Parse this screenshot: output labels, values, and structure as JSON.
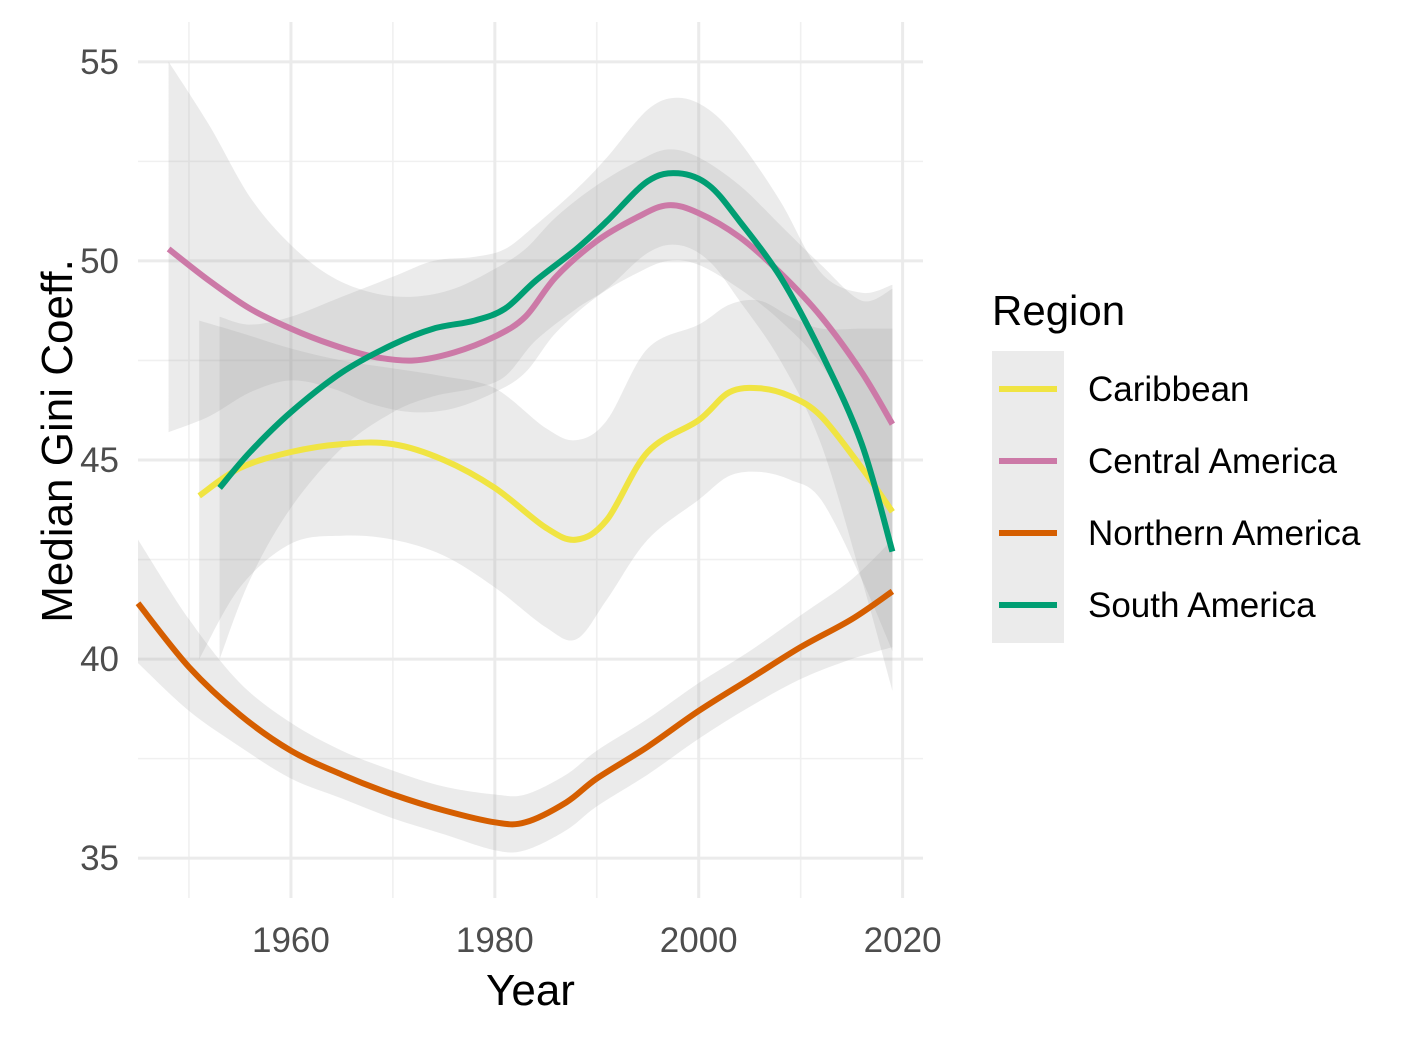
{
  "chart_data": {
    "type": "line",
    "xlabel": "Year",
    "ylabel": "Median Gini Coeff.",
    "xlim": [
      1945,
      2022
    ],
    "ylim": [
      34,
      56
    ],
    "x_ticks": [
      1960,
      1980,
      2000,
      2020
    ],
    "y_ticks": [
      35,
      40,
      45,
      50,
      55
    ],
    "grid": true,
    "confidence_bands": true,
    "legend": {
      "title": "Region",
      "placement": "right"
    },
    "series": [
      {
        "name": "Caribbean",
        "color": "#F0E442",
        "points": [
          [
            1951,
            44.1
          ],
          [
            1955,
            44.8
          ],
          [
            1960,
            45.2
          ],
          [
            1965,
            45.4
          ],
          [
            1970,
            45.4
          ],
          [
            1975,
            45.0
          ],
          [
            1980,
            44.3
          ],
          [
            1985,
            43.3
          ],
          [
            1988,
            43.0
          ],
          [
            1991,
            43.5
          ],
          [
            1995,
            45.2
          ],
          [
            2000,
            46.0
          ],
          [
            2003,
            46.7
          ],
          [
            2006,
            46.8
          ],
          [
            2009,
            46.6
          ],
          [
            2012,
            46.1
          ],
          [
            2016,
            44.8
          ],
          [
            2019,
            43.7
          ]
        ],
        "band_upper": [
          [
            1951,
            48.5
          ],
          [
            1955,
            48.2
          ],
          [
            1960,
            47.8
          ],
          [
            1965,
            47.5
          ],
          [
            1970,
            47.3
          ],
          [
            1975,
            47.1
          ],
          [
            1980,
            46.8
          ],
          [
            1985,
            45.8
          ],
          [
            1988,
            45.5
          ],
          [
            1991,
            46.0
          ],
          [
            1995,
            47.8
          ],
          [
            2000,
            48.4
          ],
          [
            2003,
            48.9
          ],
          [
            2006,
            49.0
          ],
          [
            2009,
            48.6
          ],
          [
            2012,
            48.3
          ],
          [
            2016,
            48.3
          ],
          [
            2019,
            48.3
          ]
        ],
        "band_lower": [
          [
            1951,
            40.0
          ],
          [
            1955,
            41.8
          ],
          [
            1960,
            42.9
          ],
          [
            1965,
            43.1
          ],
          [
            1970,
            43.0
          ],
          [
            1975,
            42.6
          ],
          [
            1980,
            41.8
          ],
          [
            1985,
            40.8
          ],
          [
            1988,
            40.5
          ],
          [
            1991,
            41.5
          ],
          [
            1995,
            43.0
          ],
          [
            2000,
            44.0
          ],
          [
            2003,
            44.6
          ],
          [
            2006,
            44.7
          ],
          [
            2009,
            44.5
          ],
          [
            2012,
            44.0
          ],
          [
            2016,
            42.0
          ],
          [
            2019,
            40.2
          ]
        ]
      },
      {
        "name": "Central America",
        "color": "#CC79A7",
        "points": [
          [
            1948,
            50.3
          ],
          [
            1952,
            49.5
          ],
          [
            1956,
            48.8
          ],
          [
            1960,
            48.3
          ],
          [
            1964,
            47.9
          ],
          [
            1968,
            47.6
          ],
          [
            1972,
            47.5
          ],
          [
            1976,
            47.7
          ],
          [
            1980,
            48.1
          ],
          [
            1983,
            48.6
          ],
          [
            1986,
            49.6
          ],
          [
            1990,
            50.5
          ],
          [
            1994,
            51.1
          ],
          [
            1997,
            51.4
          ],
          [
            2000,
            51.2
          ],
          [
            2004,
            50.6
          ],
          [
            2008,
            49.7
          ],
          [
            2012,
            48.6
          ],
          [
            2016,
            47.2
          ],
          [
            2019,
            45.9
          ]
        ],
        "band_upper": [
          [
            1948,
            55.0
          ],
          [
            1952,
            53.4
          ],
          [
            1956,
            51.6
          ],
          [
            1960,
            50.4
          ],
          [
            1964,
            49.6
          ],
          [
            1968,
            49.2
          ],
          [
            1972,
            49.1
          ],
          [
            1976,
            49.3
          ],
          [
            1980,
            49.8
          ],
          [
            1983,
            50.3
          ],
          [
            1986,
            51.1
          ],
          [
            1990,
            51.9
          ],
          [
            1994,
            52.5
          ],
          [
            1997,
            52.8
          ],
          [
            2000,
            52.6
          ],
          [
            2004,
            51.9
          ],
          [
            2008,
            50.9
          ],
          [
            2012,
            49.9
          ],
          [
            2016,
            49.0
          ],
          [
            2019,
            49.3
          ]
        ],
        "band_lower": [
          [
            1948,
            45.7
          ],
          [
            1952,
            46.1
          ],
          [
            1956,
            46.7
          ],
          [
            1960,
            47.0
          ],
          [
            1964,
            46.8
          ],
          [
            1968,
            46.4
          ],
          [
            1972,
            46.2
          ],
          [
            1976,
            46.3
          ],
          [
            1980,
            46.7
          ],
          [
            1983,
            47.2
          ],
          [
            1986,
            48.2
          ],
          [
            1990,
            49.1
          ],
          [
            1994,
            49.7
          ],
          [
            1997,
            50.0
          ],
          [
            2000,
            49.9
          ],
          [
            2004,
            49.3
          ],
          [
            2008,
            48.5
          ],
          [
            2012,
            47.4
          ],
          [
            2016,
            45.6
          ],
          [
            2019,
            42.5
          ]
        ]
      },
      {
        "name": "Northern America",
        "color": "#D55E00",
        "points": [
          [
            1945,
            41.4
          ],
          [
            1950,
            39.8
          ],
          [
            1955,
            38.6
          ],
          [
            1960,
            37.7
          ],
          [
            1965,
            37.1
          ],
          [
            1970,
            36.6
          ],
          [
            1975,
            36.2
          ],
          [
            1980,
            35.9
          ],
          [
            1983,
            35.9
          ],
          [
            1987,
            36.4
          ],
          [
            1990,
            37.0
          ],
          [
            1995,
            37.8
          ],
          [
            2000,
            38.7
          ],
          [
            2005,
            39.5
          ],
          [
            2010,
            40.3
          ],
          [
            2015,
            41.0
          ],
          [
            2019,
            41.7
          ]
        ],
        "band_upper": [
          [
            1945,
            43.0
          ],
          [
            1950,
            41.0
          ],
          [
            1955,
            39.4
          ],
          [
            1960,
            38.4
          ],
          [
            1965,
            37.7
          ],
          [
            1970,
            37.2
          ],
          [
            1975,
            36.8
          ],
          [
            1980,
            36.6
          ],
          [
            1983,
            36.6
          ],
          [
            1987,
            37.1
          ],
          [
            1990,
            37.7
          ],
          [
            1995,
            38.5
          ],
          [
            2000,
            39.4
          ],
          [
            2005,
            40.2
          ],
          [
            2010,
            41.1
          ],
          [
            2015,
            42.0
          ],
          [
            2019,
            43.0
          ]
        ],
        "band_lower": [
          [
            1945,
            39.9
          ],
          [
            1950,
            38.7
          ],
          [
            1955,
            37.8
          ],
          [
            1960,
            37.0
          ],
          [
            1965,
            36.5
          ],
          [
            1970,
            36.0
          ],
          [
            1975,
            35.6
          ],
          [
            1980,
            35.2
          ],
          [
            1983,
            35.2
          ],
          [
            1987,
            35.7
          ],
          [
            1990,
            36.3
          ],
          [
            1995,
            37.1
          ],
          [
            2000,
            38.0
          ],
          [
            2005,
            38.8
          ],
          [
            2010,
            39.5
          ],
          [
            2015,
            40.0
          ],
          [
            2019,
            40.3
          ]
        ]
      },
      {
        "name": "South America",
        "color": "#009E73",
        "points": [
          [
            1953,
            44.3
          ],
          [
            1956,
            45.2
          ],
          [
            1960,
            46.2
          ],
          [
            1965,
            47.2
          ],
          [
            1970,
            47.9
          ],
          [
            1974,
            48.3
          ],
          [
            1978,
            48.5
          ],
          [
            1981,
            48.8
          ],
          [
            1984,
            49.5
          ],
          [
            1988,
            50.3
          ],
          [
            1991,
            51.0
          ],
          [
            1995,
            52.0
          ],
          [
            1998,
            52.2
          ],
          [
            2001,
            51.9
          ],
          [
            2004,
            51.0
          ],
          [
            2008,
            49.6
          ],
          [
            2012,
            47.7
          ],
          [
            2016,
            45.4
          ],
          [
            2019,
            42.7
          ]
        ],
        "band_upper": [
          [
            1953,
            48.6
          ],
          [
            1956,
            48.4
          ],
          [
            1960,
            48.6
          ],
          [
            1965,
            49.1
          ],
          [
            1970,
            49.6
          ],
          [
            1974,
            50.0
          ],
          [
            1978,
            50.1
          ],
          [
            1981,
            50.3
          ],
          [
            1984,
            50.9
          ],
          [
            1988,
            51.8
          ],
          [
            1991,
            52.6
          ],
          [
            1995,
            53.8
          ],
          [
            1998,
            54.1
          ],
          [
            2001,
            53.8
          ],
          [
            2004,
            53.0
          ],
          [
            2008,
            51.5
          ],
          [
            2012,
            49.7
          ],
          [
            2016,
            49.2
          ],
          [
            2019,
            49.4
          ]
        ],
        "band_lower": [
          [
            1953,
            40.0
          ],
          [
            1956,
            42.0
          ],
          [
            1960,
            43.8
          ],
          [
            1965,
            45.3
          ],
          [
            1970,
            46.2
          ],
          [
            1974,
            46.6
          ],
          [
            1978,
            46.8
          ],
          [
            1981,
            47.1
          ],
          [
            1984,
            48.0
          ],
          [
            1988,
            48.8
          ],
          [
            1991,
            49.3
          ],
          [
            1995,
            50.2
          ],
          [
            1998,
            50.4
          ],
          [
            2001,
            50.0
          ],
          [
            2004,
            49.0
          ],
          [
            2008,
            47.5
          ],
          [
            2012,
            45.4
          ],
          [
            2016,
            42.0
          ],
          [
            2019,
            39.2
          ]
        ]
      }
    ]
  }
}
